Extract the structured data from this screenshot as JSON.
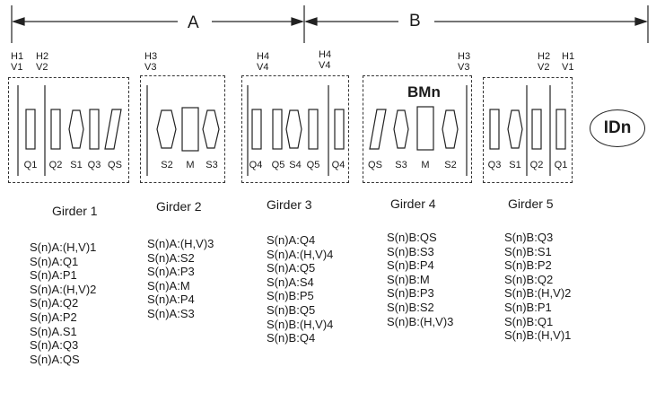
{
  "sections": {
    "a": "A",
    "b": "B"
  },
  "bmn": "BMn",
  "idn": "IDn",
  "hv_tags": {
    "g1_left": [
      "H1",
      "V1"
    ],
    "g1_right": [
      "H2",
      "V2"
    ],
    "g2": [
      "H3",
      "V3"
    ],
    "g3_left": [
      "H4",
      "V4"
    ],
    "g3_right": [
      "H4",
      "V4"
    ],
    "g4": [
      "H3",
      "V3"
    ],
    "g5_left": [
      "H2",
      "V2"
    ],
    "g5_right": [
      "H1",
      "V1"
    ]
  },
  "girders": [
    {
      "name": "Girder 1",
      "elements": [
        "Q1",
        "Q2",
        "S1",
        "Q3",
        "QS"
      ],
      "list": [
        "S(n)A:(H,V)1",
        "S(n)A:Q1",
        "S(n)A:P1",
        "S(n)A:(H,V)2",
        "S(n)A:Q2",
        "S(n)A:P2",
        "S(n)A.S1",
        "S(n)A:Q3",
        "S(n)A:QS"
      ]
    },
    {
      "name": "Girder 2",
      "elements": [
        "S2",
        "M",
        "S3"
      ],
      "list": [
        "S(n)A:(H,V)3",
        "S(n)A:S2",
        "S(n)A:P3",
        "S(n)A:M",
        "S(n)A:P4",
        "S(n)A:S3"
      ]
    },
    {
      "name": "Girder 3",
      "elements": [
        "Q4",
        "Q5",
        "S4",
        "Q5",
        "Q4"
      ],
      "list": [
        "S(n)A:Q4",
        "S(n)A:(H,V)4",
        "S(n)A:Q5",
        "S(n)A:S4",
        "S(n)B:P5",
        "S(n)B:Q5",
        "S(n)B:(H,V)4",
        "S(n)B:Q4"
      ]
    },
    {
      "name": "Girder 4",
      "elements": [
        "QS",
        "S3",
        "M",
        "S2"
      ],
      "list": [
        "S(n)B:QS",
        "S(n)B:S3",
        "S(n)B:P4",
        "S(n)B:M",
        "S(n)B:P3",
        "S(n)B:S2",
        "S(n)B:(H,V)3"
      ]
    },
    {
      "name": "Girder 5",
      "elements": [
        "Q3",
        "S1",
        "Q2",
        "Q1"
      ],
      "list": [
        "S(n)B:Q3",
        "S(n)B:S1",
        "S(n)B:P2",
        "S(n)B:Q2",
        "S(n)B:(H,V)2",
        "S(n)B:P1",
        "S(n)B:Q1",
        "S(n)B:(H,V)1"
      ]
    }
  ]
}
